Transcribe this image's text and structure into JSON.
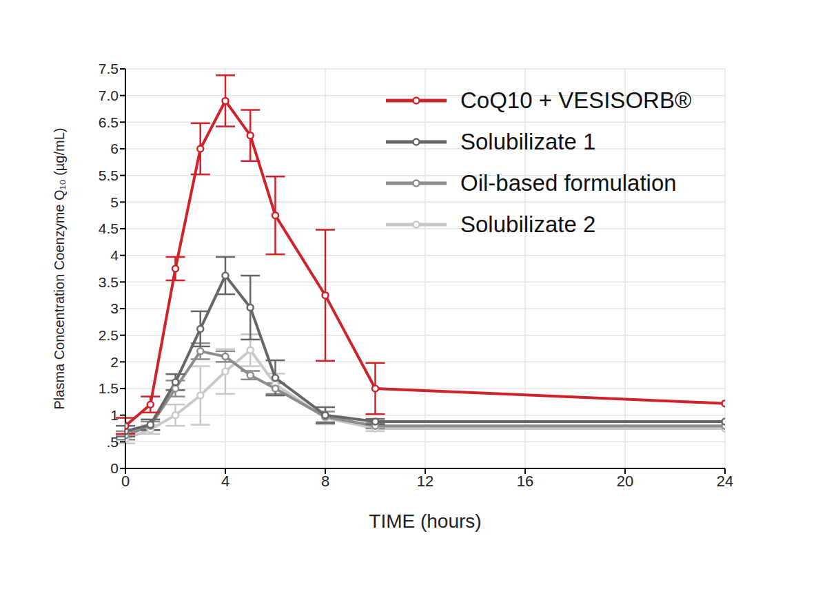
{
  "chart_data": {
    "type": "line",
    "x_label": "TIME (hours)",
    "y_label": "Plasma Concentration Coenzyme Q₁₀ (µg/mL)",
    "x": [
      0,
      1,
      2,
      3,
      4,
      5,
      6,
      8,
      10,
      24
    ],
    "xlim": [
      0,
      24
    ],
    "xticks": [
      0,
      4,
      8,
      12,
      16,
      20,
      24
    ],
    "ylim": [
      0,
      7.5
    ],
    "yticks": [
      0,
      {
        "value": 0.5,
        "label": ".5"
      },
      1,
      1.5,
      2,
      2.5,
      3,
      3.5,
      4,
      4.5,
      5,
      5.5,
      6,
      6.5,
      {
        "value": 7,
        "label": "7.0"
      },
      7.5
    ],
    "grid": true,
    "legend": "top-right",
    "marker": "circle",
    "series": [
      {
        "name": "CoQ10 + VESISORB®",
        "color": "#d0222a",
        "values": [
          0.8,
          1.2,
          3.75,
          6.0,
          6.9,
          6.25,
          4.75,
          3.25,
          1.5,
          1.22
        ],
        "errors": [
          0.15,
          0.15,
          0.22,
          0.48,
          0.48,
          0.48,
          0.73,
          1.23,
          0.48,
          null
        ]
      },
      {
        "name": "Solubilizate 1",
        "color": "#666666",
        "values": [
          0.7,
          0.82,
          1.62,
          2.62,
          3.62,
          3.02,
          1.7,
          1.0,
          0.88,
          0.88
        ],
        "errors": [
          0.1,
          0.1,
          0.15,
          0.33,
          0.35,
          0.6,
          0.33,
          0.15,
          0.05,
          null
        ]
      },
      {
        "name": "Oil-based formulation",
        "color": "#8c8c8c",
        "values": [
          0.62,
          0.8,
          1.5,
          2.2,
          2.1,
          1.75,
          1.5,
          0.97,
          0.8,
          0.8
        ],
        "errors": [
          0.08,
          0.08,
          0.15,
          0.15,
          0.1,
          0.08,
          0.1,
          0.1,
          0.05,
          null
        ]
      },
      {
        "name": "Solubilizate 2",
        "color": "#c8c8c8",
        "values": [
          0.55,
          0.73,
          1.0,
          1.37,
          1.82,
          2.22,
          1.58,
          0.95,
          0.75,
          0.75
        ],
        "errors": [
          0.08,
          0.08,
          0.2,
          0.55,
          0.42,
          0.3,
          0.2,
          0.12,
          0.05,
          null
        ]
      }
    ]
  }
}
